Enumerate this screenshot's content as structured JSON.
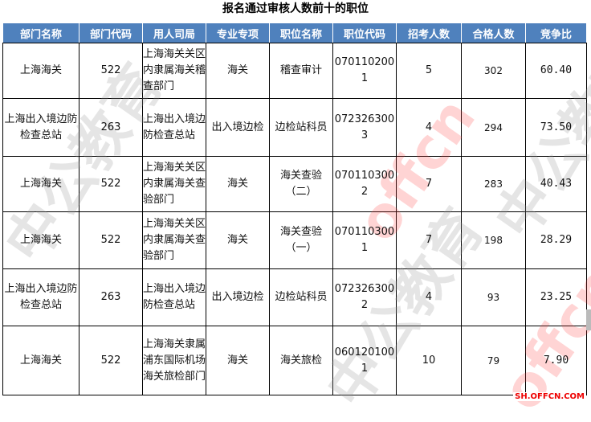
{
  "title": "报名通过审核人数前十的职位",
  "headers": [
    "部门名称",
    "部门代码",
    "用人司局",
    "专业专项",
    "职位名称",
    "职位代码",
    "招考人数",
    "合格人数",
    "竞争比"
  ],
  "rows": [
    [
      "上海海关",
      "522",
      "上海海关关区内隶属海关稽查部门",
      "海关",
      "稽查审计",
      "0701102001",
      "5",
      "302",
      "60.40"
    ],
    [
      "上海出入境边防检查总站",
      "263",
      "上海出入境边防检查总站",
      "出入境边检",
      "边检站科员",
      "0723263003",
      "4",
      "294",
      "73.50"
    ],
    [
      "上海海关",
      "522",
      "上海海关关区内隶属海关查验部门",
      "海关",
      "海关查验（二）",
      "0701103002",
      "7",
      "283",
      "40.43"
    ],
    [
      "上海海关",
      "522",
      "上海海关关区内隶属海关查验部门",
      "海关",
      "海关查验（一）",
      "0701103001",
      "7",
      "198",
      "28.29"
    ],
    [
      "上海出入境边防检查总站",
      "263",
      "上海出入境边防检查总站",
      "出入境边检",
      "边检站科员",
      "0723263002",
      "4",
      "93",
      "23.25"
    ],
    [
      "上海海关",
      "522",
      "上海海关隶属浦东国际机场海关旅检部门",
      "海关",
      "海关旅检",
      "0601201001",
      "10",
      "79",
      "7.90"
    ]
  ],
  "watermark": {
    "text1": "中公教育",
    "text2": "offcn",
    "site": "SH.OFFCN.COM"
  },
  "colors": {
    "header_bg": "#4f81bd",
    "watermark_red": "#ff3c3c"
  }
}
